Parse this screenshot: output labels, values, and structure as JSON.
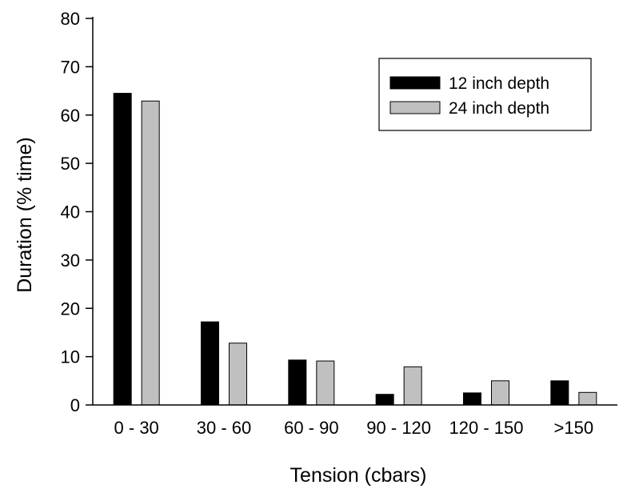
{
  "chart_data": {
    "type": "bar",
    "xlabel": "Tension (cbars)",
    "ylabel": "Duration (% time)",
    "ylim": [
      0,
      80
    ],
    "yticks": [
      0,
      10,
      20,
      30,
      40,
      50,
      60,
      70,
      80
    ],
    "categories": [
      "0 - 30",
      "30 - 60",
      "60 - 90",
      "90 - 120",
      "120 - 150",
      ">150"
    ],
    "series": [
      {
        "name": "12 inch depth",
        "color": "#000000",
        "values": [
          64.5,
          17.2,
          9.3,
          2.2,
          2.5,
          5.0
        ]
      },
      {
        "name": "24 inch depth",
        "color": "#c0c0c0",
        "values": [
          62.9,
          12.8,
          9.1,
          7.9,
          5.0,
          2.6
        ]
      }
    ],
    "legend": "top-right",
    "grid": false
  }
}
